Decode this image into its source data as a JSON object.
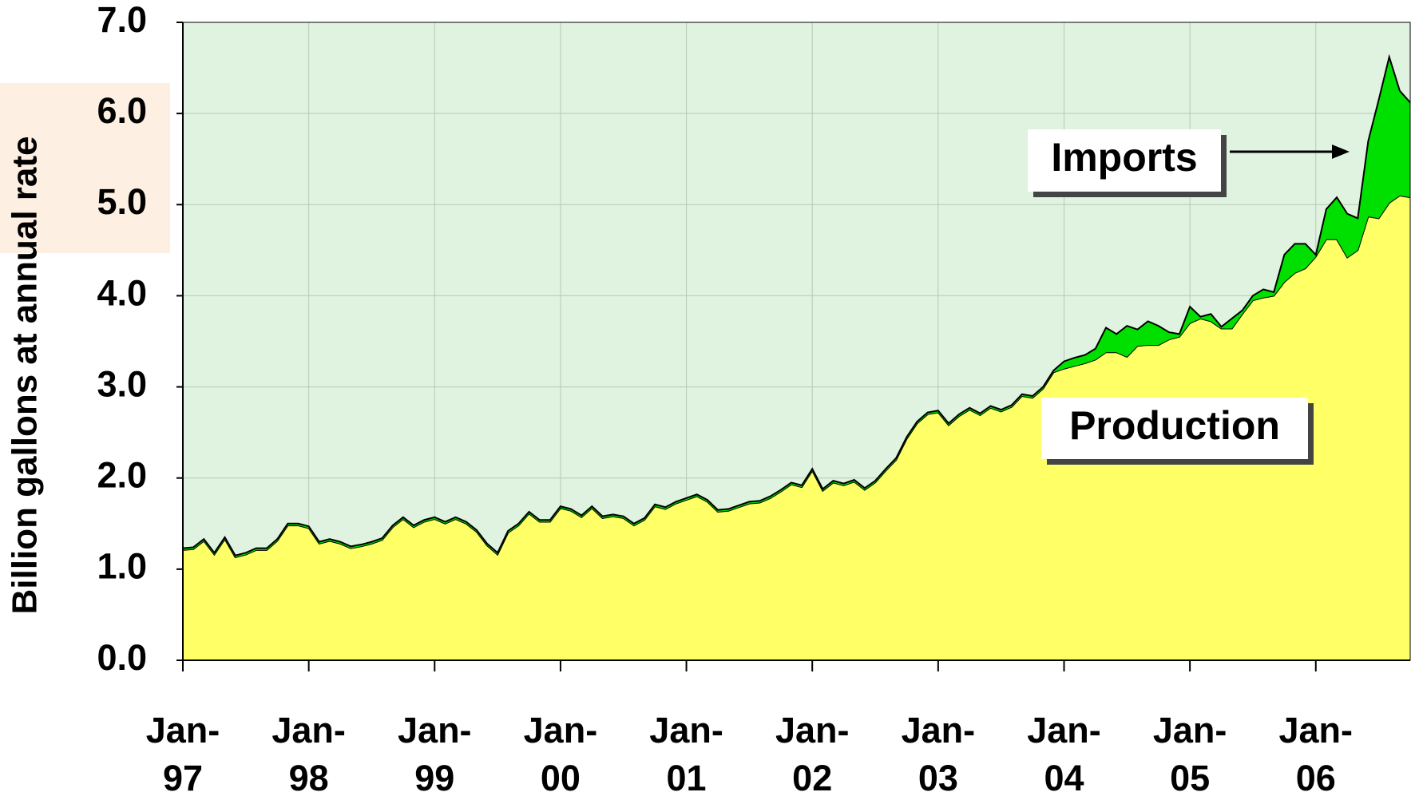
{
  "chart_data": {
    "type": "stacked_area",
    "y_label": "Billion gallons at annual rate",
    "categories": [
      "Jan-97",
      null,
      null,
      null,
      null,
      null,
      null,
      null,
      null,
      null,
      null,
      null,
      "Jan-98",
      null,
      null,
      null,
      null,
      null,
      null,
      null,
      null,
      null,
      null,
      null,
      "Jan-99",
      null,
      null,
      null,
      null,
      null,
      null,
      null,
      null,
      null,
      null,
      null,
      "Jan-00",
      null,
      null,
      null,
      null,
      null,
      null,
      null,
      null,
      null,
      null,
      null,
      "Jan-01",
      null,
      null,
      null,
      null,
      null,
      null,
      null,
      null,
      null,
      null,
      null,
      "Jan-02",
      null,
      null,
      null,
      null,
      null,
      null,
      null,
      null,
      null,
      null,
      null,
      "Jan-03",
      null,
      null,
      null,
      null,
      null,
      null,
      null,
      null,
      null,
      null,
      null,
      "Jan-04",
      null,
      null,
      null,
      null,
      null,
      null,
      null,
      null,
      null,
      null,
      null,
      "Jan-05",
      null,
      null,
      null,
      null,
      null,
      null,
      null,
      null,
      null,
      null,
      null,
      "Jan-06",
      null,
      null,
      null,
      null,
      null,
      null,
      null,
      null,
      null
    ],
    "series": [
      {
        "name": "Production",
        "color": "#ffff66",
        "values": [
          1.21,
          1.22,
          1.31,
          1.16,
          1.33,
          1.13,
          1.16,
          1.21,
          1.21,
          1.31,
          1.48,
          1.48,
          1.45,
          1.28,
          1.31,
          1.28,
          1.23,
          1.25,
          1.28,
          1.32,
          1.46,
          1.55,
          1.46,
          1.52,
          1.55,
          1.5,
          1.55,
          1.5,
          1.41,
          1.26,
          1.16,
          1.4,
          1.48,
          1.61,
          1.52,
          1.52,
          1.67,
          1.64,
          1.57,
          1.67,
          1.56,
          1.58,
          1.56,
          1.48,
          1.54,
          1.69,
          1.66,
          1.72,
          1.76,
          1.8,
          1.74,
          1.63,
          1.64,
          1.68,
          1.72,
          1.73,
          1.78,
          1.85,
          1.93,
          1.9,
          2.08,
          1.86,
          1.95,
          1.92,
          1.96,
          1.87,
          1.95,
          2.08,
          2.2,
          2.43,
          2.6,
          2.7,
          2.72,
          2.58,
          2.68,
          2.75,
          2.69,
          2.77,
          2.73,
          2.78,
          2.9,
          2.88,
          2.98,
          3.16,
          3.2,
          3.23,
          3.26,
          3.3,
          3.38,
          3.38,
          3.33,
          3.45,
          3.46,
          3.46,
          3.52,
          3.55,
          3.7,
          3.75,
          3.72,
          3.64,
          3.64,
          3.8,
          3.95,
          3.98,
          4.0,
          4.15,
          4.25,
          4.3,
          4.43,
          4.62,
          4.62,
          4.42,
          4.5,
          4.87,
          4.85,
          5.02,
          5.1,
          5.08
        ]
      },
      {
        "name": "Imports",
        "color": "#00e000",
        "values": [
          0.02,
          0.02,
          0.02,
          0.02,
          0.02,
          0.02,
          0.02,
          0.02,
          0.02,
          0.02,
          0.02,
          0.02,
          0.02,
          0.02,
          0.02,
          0.02,
          0.02,
          0.02,
          0.02,
          0.02,
          0.02,
          0.02,
          0.02,
          0.02,
          0.02,
          0.02,
          0.02,
          0.02,
          0.02,
          0.02,
          0.02,
          0.02,
          0.02,
          0.02,
          0.02,
          0.02,
          0.02,
          0.02,
          0.02,
          0.02,
          0.02,
          0.02,
          0.02,
          0.02,
          0.02,
          0.02,
          0.02,
          0.02,
          0.02,
          0.02,
          0.02,
          0.02,
          0.02,
          0.02,
          0.02,
          0.02,
          0.02,
          0.02,
          0.02,
          0.02,
          0.02,
          0.02,
          0.02,
          0.02,
          0.02,
          0.02,
          0.02,
          0.02,
          0.02,
          0.02,
          0.02,
          0.02,
          0.02,
          0.02,
          0.02,
          0.02,
          0.02,
          0.02,
          0.02,
          0.02,
          0.02,
          0.02,
          0.02,
          0.02,
          0.08,
          0.09,
          0.09,
          0.12,
          0.27,
          0.2,
          0.34,
          0.18,
          0.26,
          0.21,
          0.08,
          0.03,
          0.18,
          0.02,
          0.08,
          0.02,
          0.11,
          0.04,
          0.05,
          0.09,
          0.04,
          0.3,
          0.32,
          0.27,
          0.02,
          0.33,
          0.46,
          0.48,
          0.35,
          0.83,
          1.3,
          1.6,
          1.15,
          1.04
        ]
      }
    ],
    "ylim": [
      0,
      7
    ],
    "yticks": [
      {
        "value": 0,
        "label": "0.0"
      },
      {
        "value": 1,
        "label": "1.0"
      },
      {
        "value": 2,
        "label": "2.0"
      },
      {
        "value": 3,
        "label": "3.0"
      },
      {
        "value": 4,
        "label": "4.0"
      },
      {
        "value": 5,
        "label": "5.0"
      },
      {
        "value": 6,
        "label": "6.0"
      },
      {
        "value": 7,
        "label": "7.0"
      }
    ],
    "grid": true
  }
}
